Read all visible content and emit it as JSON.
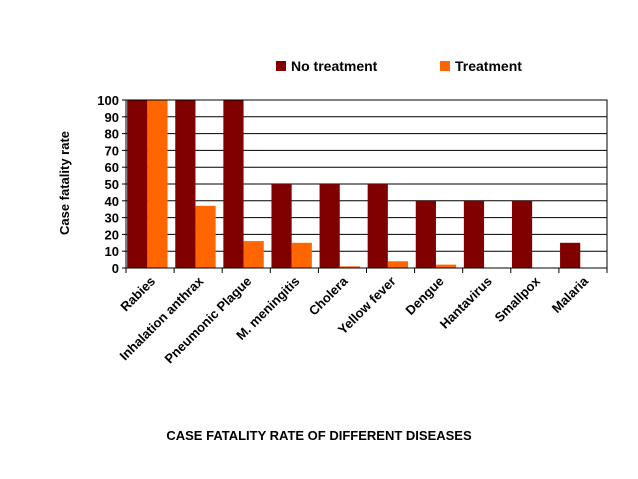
{
  "chart_data": {
    "type": "bar",
    "ylabel": "Case fatality rate",
    "ylim": [
      0,
      100
    ],
    "yticks": [
      0,
      10,
      20,
      30,
      40,
      50,
      60,
      70,
      80,
      90,
      100
    ],
    "grid": true,
    "legend_position": "top",
    "categories": [
      "Rabies",
      "Inhalation anthrax",
      "Pneumonic Plague",
      "M. meningitis",
      "Cholera",
      "Yellow fever",
      "Dengue",
      "Hantavirus",
      "Smallpox",
      "Malaria"
    ],
    "series": [
      {
        "name": "No treatment",
        "color": "#800000",
        "values": [
          100,
          100,
          100,
          50,
          50,
          50,
          40,
          40,
          40,
          15
        ]
      },
      {
        "name": "Treatment",
        "color": "#FF6600",
        "values": [
          100,
          37,
          16,
          15,
          1,
          4,
          2,
          0,
          0,
          0
        ]
      }
    ]
  },
  "caption": "CASE FATALITY RATE OF DIFFERENT DISEASES"
}
